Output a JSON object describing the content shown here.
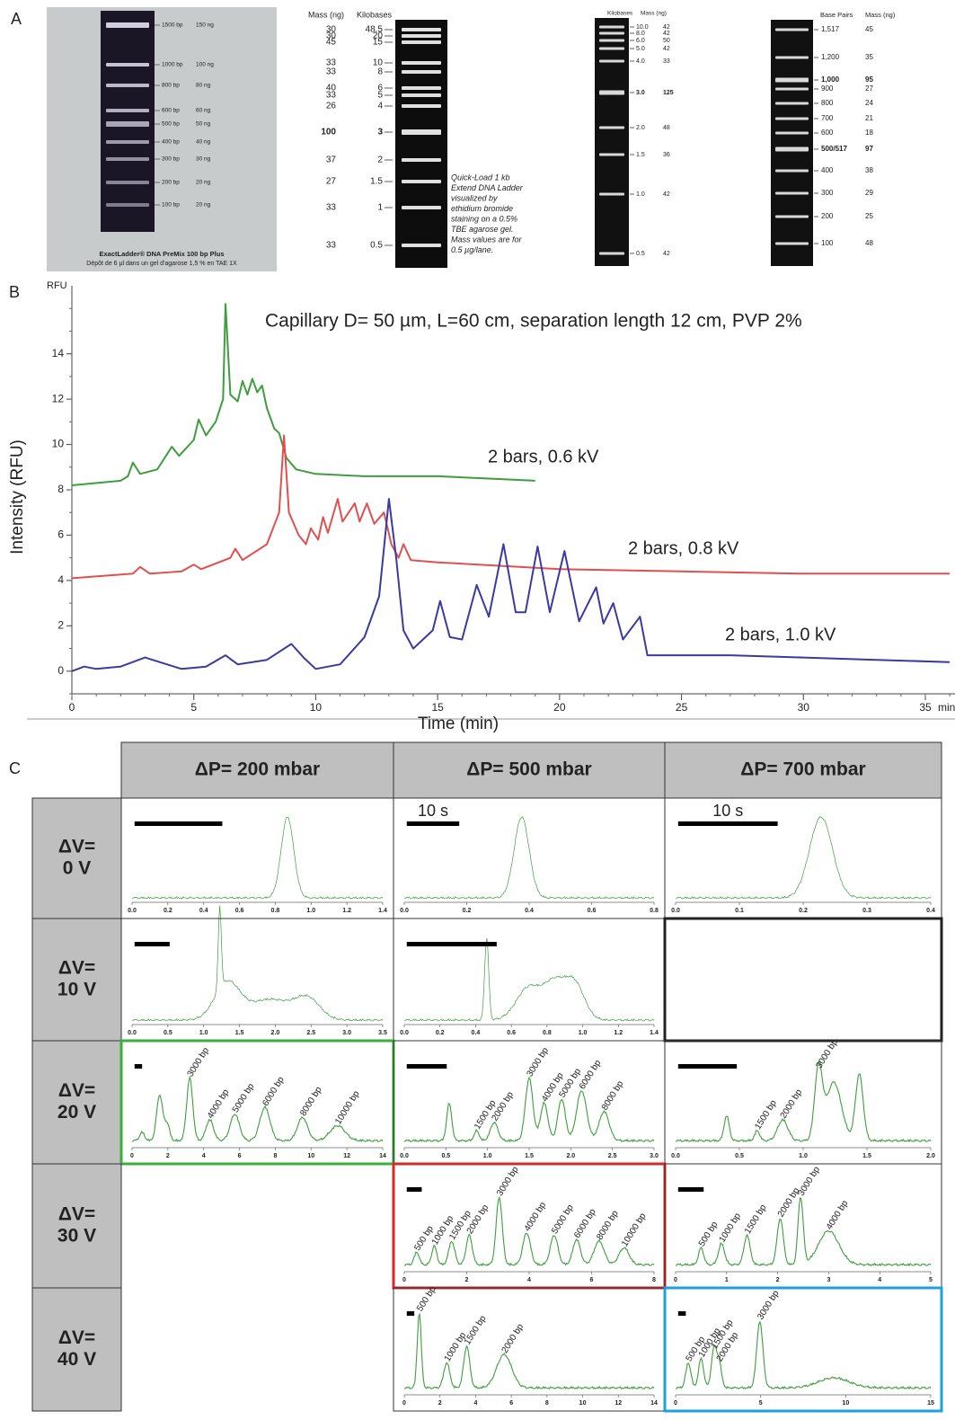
{
  "panel_a": {
    "label": "A",
    "gel1": {
      "bands": [
        [
          "1500 bp",
          "150 ng"
        ],
        [
          "1000 bp",
          "100 ng"
        ],
        [
          "800 bp",
          "80 ng"
        ],
        [
          "600 bp",
          "60 ng"
        ],
        [
          "500 bp",
          "50 ng"
        ],
        [
          "400 bp",
          "40 ng"
        ],
        [
          "300 bp",
          "30 ng"
        ],
        [
          "200 bp",
          "20 ng"
        ],
        [
          "100 bp",
          "20 ng"
        ]
      ],
      "title": "ExactLadder® DNA PreMix 100 bp Plus",
      "caption": "Dépôt de 6 µl dans un gel d'agarose 1,5 % en TAE 1X"
    },
    "gel2": {
      "headers": [
        "Mass (ng)",
        "Kilobases"
      ],
      "rows": [
        [
          "30",
          "48.5"
        ],
        [
          "30",
          "20"
        ],
        [
          "45",
          "15"
        ],
        [
          "33",
          "10"
        ],
        [
          "33",
          "8"
        ],
        [
          "40",
          "6"
        ],
        [
          "33",
          "5"
        ],
        [
          "26",
          "4"
        ],
        [
          "100",
          "3"
        ],
        [
          "37",
          "2"
        ],
        [
          "27",
          "1.5"
        ],
        [
          "33",
          "1"
        ],
        [
          "33",
          "0.5"
        ]
      ],
      "bold_rows": [
        8
      ],
      "note": [
        "Quick-Load 1 kb",
        "Extend DNA Ladder",
        "visualized by",
        "ethidium bromide",
        "staining on a 0.5%",
        "TBE agarose gel.",
        "Mass values are for",
        "0.5 µg/lane."
      ]
    },
    "gel3": {
      "headers": [
        "Kilobases",
        "Mass (ng)"
      ],
      "rows": [
        [
          "10.0",
          "42"
        ],
        [
          "8.0",
          "42"
        ],
        [
          "6.0",
          "50"
        ],
        [
          "5.0",
          "42"
        ],
        [
          "4.0",
          "33"
        ],
        [
          "3.0",
          "125"
        ],
        [
          "2.0",
          "48"
        ],
        [
          "1.5",
          "36"
        ],
        [
          "1.0",
          "42"
        ],
        [
          "0.5",
          "42"
        ]
      ],
      "bold_rows": [
        5
      ]
    },
    "gel4": {
      "headers": [
        "Base Pairs",
        "Mass (ng)"
      ],
      "rows": [
        [
          "1,517",
          "45"
        ],
        [
          "1,200",
          "35"
        ],
        [
          "1,000",
          "95"
        ],
        [
          "900",
          "27"
        ],
        [
          "800",
          "24"
        ],
        [
          "700",
          "21"
        ],
        [
          "600",
          "18"
        ],
        [
          "500/517",
          "97"
        ],
        [
          "400",
          "38"
        ],
        [
          "300",
          "29"
        ],
        [
          "200",
          "25"
        ],
        [
          "100",
          "48"
        ]
      ],
      "bold_rows": [
        2,
        7
      ]
    }
  },
  "chart_data": {
    "type": "line",
    "label": "B",
    "y_unit": "RFU",
    "x_unit": "min",
    "annotation": "Capillary D= 50 µm, L=60 cm, separation length 12 cm, PVP 2%",
    "xlabel": "Time (min)",
    "ylabel": "Intensity (RFU)",
    "xlim": [
      0,
      36
    ],
    "ylim": [
      -1,
      17
    ],
    "xticks": [
      0,
      5,
      10,
      15,
      20,
      25,
      30,
      35
    ],
    "yticks": [
      0,
      2,
      4,
      6,
      8,
      10,
      12,
      14
    ],
    "series": [
      {
        "name": "2 bars, 0.6 kV",
        "color": "#3e9e3e",
        "x": [
          0,
          2.0,
          2.3,
          2.5,
          2.8,
          3.5,
          4.1,
          4.4,
          5.0,
          5.2,
          5.5,
          5.9,
          6.2,
          6.3,
          6.5,
          6.8,
          7.0,
          7.2,
          7.4,
          7.6,
          7.8,
          8.0,
          8.3,
          8.5,
          8.8,
          9.2,
          10,
          12,
          15,
          17,
          19
        ],
        "values": [
          8.2,
          8.4,
          8.6,
          9.2,
          8.7,
          8.9,
          9.9,
          9.5,
          10.2,
          11.1,
          10.4,
          11.0,
          12.0,
          16.2,
          12.2,
          11.9,
          12.8,
          12.2,
          12.9,
          12.3,
          12.6,
          11.6,
          10.7,
          10.5,
          9.4,
          8.9,
          8.7,
          8.6,
          8.6,
          8.5,
          8.4
        ]
      },
      {
        "name": "2 bars, 0.8 kV",
        "color": "#e05050",
        "x": [
          0,
          2.5,
          2.8,
          3.2,
          4.5,
          5.0,
          5.3,
          6.5,
          6.7,
          7.0,
          8.0,
          8.5,
          8.7,
          8.9,
          9.3,
          9.6,
          9.8,
          10.1,
          10.3,
          10.5,
          10.9,
          11.1,
          11.6,
          11.8,
          12.1,
          12.4,
          12.8,
          13.1,
          13.4,
          13.6,
          13.9,
          15,
          20,
          25,
          30,
          36
        ],
        "values": [
          4.1,
          4.3,
          4.6,
          4.3,
          4.4,
          4.7,
          4.5,
          5.0,
          5.4,
          4.9,
          5.6,
          7.0,
          10.4,
          7.0,
          6.0,
          5.6,
          6.3,
          5.8,
          6.8,
          6.1,
          7.6,
          6.6,
          7.4,
          6.6,
          7.4,
          6.5,
          7.0,
          5.6,
          5.0,
          5.6,
          4.9,
          4.8,
          4.5,
          4.4,
          4.3,
          4.3
        ]
      },
      {
        "name": "2 bars, 1.0 kV",
        "color": "#3a3aa0",
        "x": [
          0,
          0.5,
          1,
          2,
          3,
          3.6,
          4.5,
          5.5,
          6.3,
          6.8,
          8,
          9,
          9.5,
          10,
          11,
          12,
          12.6,
          13.0,
          13.3,
          13.6,
          14,
          14.8,
          15.1,
          15.5,
          16,
          16.6,
          17.1,
          17.7,
          18.2,
          18.6,
          19.1,
          19.6,
          20.2,
          20.8,
          21.5,
          21.8,
          22.2,
          22.6,
          23.3,
          23.6,
          25,
          27,
          30,
          33,
          36
        ],
        "values": [
          0,
          0.2,
          0.1,
          0.2,
          0.6,
          0.4,
          0.1,
          0.2,
          0.7,
          0.3,
          0.5,
          1.2,
          0.6,
          0.1,
          0.3,
          1.5,
          3.3,
          7.6,
          5.0,
          1.8,
          1.0,
          1.8,
          3.1,
          1.5,
          1.4,
          3.8,
          2.4,
          5.6,
          2.6,
          2.6,
          5.5,
          2.6,
          5.3,
          2.2,
          3.7,
          2.1,
          3.0,
          1.4,
          2.4,
          0.7,
          0.7,
          0.7,
          0.6,
          0.5,
          0.4
        ]
      }
    ]
  },
  "panel_c": {
    "label": "C",
    "columns": [
      "ΔP= 200 mbar",
      "ΔP= 500 mbar",
      "ΔP= 700 mbar"
    ],
    "rows": [
      {
        "label": [
          "ΔV=",
          "0 V"
        ],
        "cells": [
          {
            "xticks": [
              "0.0",
              "0.2",
              "0.4",
              "0.6",
              "0.8",
              "1.0",
              "1.2",
              "1.4"
            ]
          },
          {
            "xticks": [
              "0.0",
              "0.2",
              "0.4",
              "0.6",
              "0.8"
            ],
            "scale_label": "10 s"
          },
          {
            "xticks": [
              "0.0",
              "0.1",
              "0.2",
              "0.3",
              "0.4"
            ],
            "scale_label": "10 s"
          }
        ]
      },
      {
        "label": [
          "ΔV=",
          "10 V"
        ],
        "cells": [
          {
            "xticks": [
              "0.0",
              "0.5",
              "1.0",
              "1.5",
              "2.0",
              "2.5",
              "3.0",
              "3.5"
            ]
          },
          {
            "xticks": [
              "0.0",
              "0.2",
              "0.4",
              "0.6",
              "0.8",
              "1.0",
              "1.2",
              "1.4"
            ]
          },
          {
            "frame": "#222222"
          }
        ]
      },
      {
        "label": [
          "ΔV=",
          "20 V"
        ],
        "cells": [
          {
            "xticks": [
              "0",
              "2",
              "4",
              "6",
              "8",
              "10",
              "12",
              "14"
            ],
            "peaks": [
              "3000 bp",
              "4000 bp",
              "5000 bp",
              "6000 bp",
              "8000 bp",
              "10000 bp"
            ],
            "frame": "#3cae3c"
          },
          {
            "xticks": [
              "0.0",
              "0.5",
              "1.0",
              "1.5",
              "2.0",
              "2.5",
              "3.0"
            ],
            "peaks": [
              "1500 bp",
              "2000 bp",
              "3000 bp",
              "4000 bp",
              "5000 bp",
              "6000 bp",
              "8000 bp"
            ]
          },
          {
            "xticks": [
              "0.0",
              "0.5",
              "1.0",
              "1.5",
              "2.0"
            ],
            "peaks": [
              "1500 bp",
              "2000 bp",
              "3000 bp"
            ]
          }
        ]
      },
      {
        "label": [
          "ΔV=",
          "30 V"
        ],
        "cells": [
          null,
          {
            "xticks": [
              "0",
              "2",
              "4",
              "6",
              "8"
            ],
            "peaks": [
              "500 bp",
              "1000 bp",
              "1500 bp",
              "2000 bp",
              "3000 bp",
              "4000 bp",
              "5000 bp",
              "6000 bp",
              "8000 bp",
              "10000 bp"
            ],
            "frame": "#d42a2a"
          },
          {
            "xticks": [
              "0",
              "1",
              "2",
              "3",
              "4",
              "5"
            ],
            "peaks": [
              "500 bp",
              "1000 bp",
              "1500 bp",
              "2000 bp",
              "3000 bp",
              "4000 bp"
            ]
          }
        ]
      },
      {
        "label": [
          "ΔV=",
          "40 V"
        ],
        "cells": [
          null,
          {
            "xticks": [
              "0",
              "2",
              "4",
              "6",
              "8",
              "10",
              "12",
              "14"
            ],
            "peaks": [
              "500 bp",
              "1000 bp",
              "1500 bp",
              "2000 bp"
            ]
          },
          {
            "xticks": [
              "0",
              "5",
              "10",
              "15"
            ],
            "peaks": [
              "500 bp",
              "1000 bp",
              "1500 bp",
              "2000 bp",
              "3000 bp"
            ],
            "frame": "#1ea0dc"
          }
        ]
      }
    ]
  }
}
